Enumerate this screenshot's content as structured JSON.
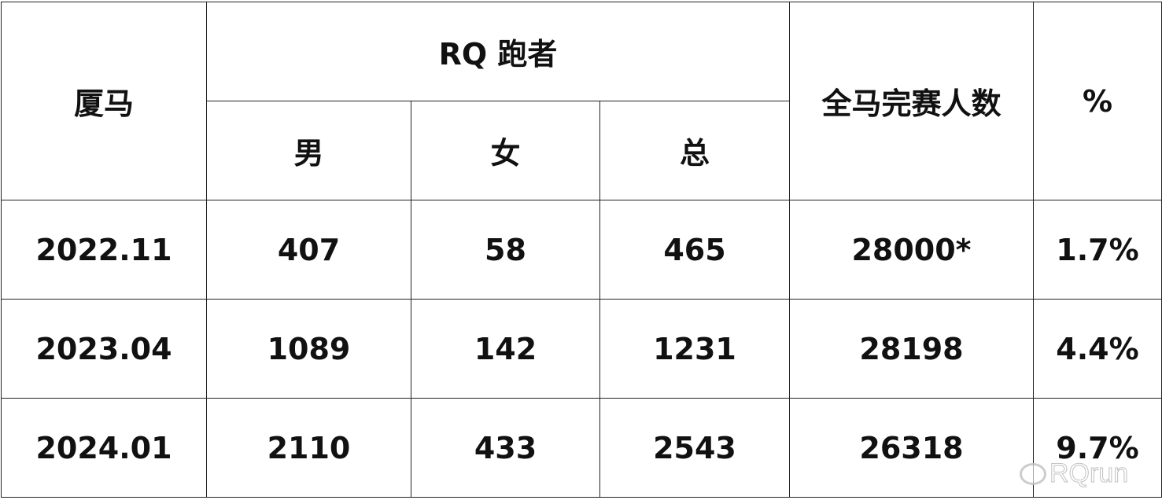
{
  "header": {
    "race": "厦马",
    "rq_group": "RQ 跑者",
    "male": "男",
    "female": "女",
    "total": "总",
    "finishers": "全马完赛人数",
    "percent": "%"
  },
  "rows": [
    {
      "date": "2022.11",
      "male": "407",
      "female": "58",
      "total": "465",
      "finishers": "28000*",
      "percent": "1.7%"
    },
    {
      "date": "2023.04",
      "male": "1089",
      "female": "142",
      "total": "1231",
      "finishers": "28198",
      "percent": "4.4%"
    },
    {
      "date": "2024.01",
      "male": "2110",
      "female": "433",
      "total": "2543",
      "finishers": "26318",
      "percent": "9.7%"
    }
  ],
  "watermark": {
    "text": "RQrun",
    "icon": "weibo-icon"
  }
}
